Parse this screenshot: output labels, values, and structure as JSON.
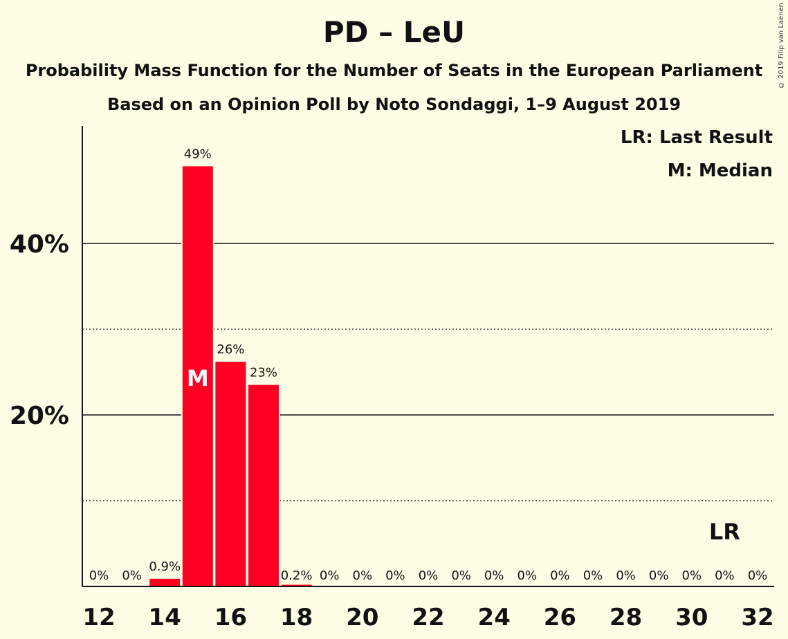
{
  "chart_data": {
    "type": "bar",
    "title": "PD – LeU",
    "subtitle": "Probability Mass Function for the Number of Seats in the European Parliament",
    "subtitle2": "Based on an Opinion Poll by Noto Sondaggi, 1–9 August 2019",
    "copyright": "© 2019 Filip van Laenen",
    "legend": {
      "last_result": "LR: Last Result",
      "median": "M: Median",
      "placement": "top-right"
    },
    "x": [
      12,
      13,
      14,
      15,
      16,
      17,
      18,
      19,
      20,
      21,
      22,
      23,
      24,
      25,
      26,
      27,
      28,
      29,
      30,
      31,
      32
    ],
    "values": [
      0,
      0,
      0.9,
      49,
      26.2,
      23.5,
      0.2,
      0,
      0,
      0,
      0,
      0,
      0,
      0,
      0,
      0,
      0,
      0,
      0,
      0,
      0
    ],
    "bar_labels": [
      "0%",
      "0%",
      "0.9%",
      "49%",
      "26%",
      "23%",
      "0.2%",
      "0%",
      "0%",
      "0%",
      "0%",
      "0%",
      "0%",
      "0%",
      "0%",
      "0%",
      "0%",
      "0%",
      "0%",
      "0%",
      "0%"
    ],
    "x_ticks": [
      "12",
      "14",
      "16",
      "18",
      "20",
      "22",
      "24",
      "26",
      "28",
      "30",
      "32"
    ],
    "y_ticks": [
      {
        "value": 20,
        "label": "20%"
      },
      {
        "value": 40,
        "label": "40%"
      }
    ],
    "y_minor_gridlines": [
      10,
      30
    ],
    "ylim": [
      0,
      53.5
    ],
    "median_seat": 15,
    "median_marker": "M",
    "last_result_seat": 31,
    "last_result_marker": "LR",
    "bar_color": "#FF0022"
  }
}
